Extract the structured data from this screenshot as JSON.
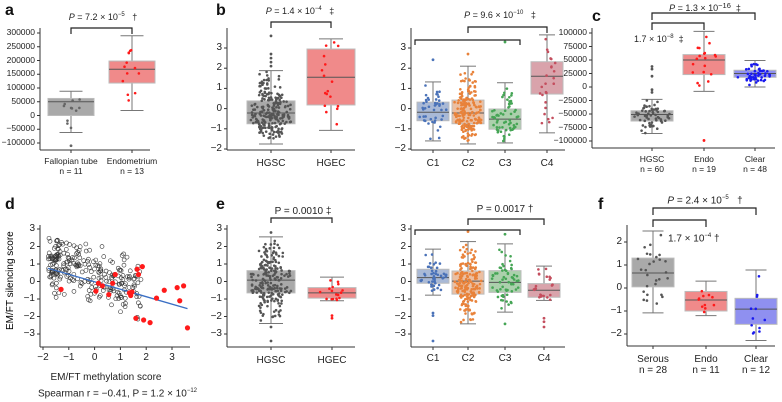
{
  "panels": {
    "a": {
      "letter": "a",
      "p": "P",
      "ptext": " = 7.2 × 10",
      "exp": "−5",
      "mark": "†",
      "labels": [
        "Fallopian tube",
        "Endometrium"
      ],
      "n": [
        "n = 11",
        "n = 13"
      ]
    },
    "b": {
      "letter": "b",
      "p": "P",
      "ptext": " = 1.4 × 10",
      "exp": "−4",
      "mark": "‡",
      "labels": [
        "HGSC",
        "HGEC"
      ]
    },
    "b2": {
      "p": "P",
      "ptext": " = 9.6 × 10",
      "exp": "−10",
      "mark": "‡",
      "labels": [
        "C1",
        "C2",
        "C3",
        "C4"
      ]
    },
    "c": {
      "letter": "c",
      "p": "P",
      "ptext": " = 1.3 × 10",
      "exp": "−16",
      "mark": "‡",
      "inner": "1.7 × 10",
      "inner_exp": "−8",
      "inner_mark": "‡",
      "labels": [
        "HGSC",
        "Endo",
        "Clear"
      ],
      "n": [
        "n = 60",
        "n = 19",
        "n = 48"
      ]
    },
    "d": {
      "letter": "d",
      "xlabel": "EM/FT methylation score",
      "ylabel": "EM/FT silencing score",
      "stat": "Spearman r = −0.41, P = 1.2 × 10",
      "stat_exp": "−12"
    },
    "e": {
      "letter": "e",
      "ptext": "P = 0.0010 ‡",
      "labels": [
        "HGSC",
        "HGEC"
      ]
    },
    "e2": {
      "ptext": "P = 0.0017 †",
      "labels": [
        "C1",
        "C2",
        "C3",
        "C4"
      ]
    },
    "f": {
      "letter": "f",
      "p": "P",
      "ptext": " = 2.4 × 10",
      "exp": "−5",
      "mark": "†",
      "inner": "1.7 × 10",
      "inner_exp": "−4",
      "inner_mark": "†",
      "labels": [
        "Serous",
        "Endo",
        "Clear"
      ],
      "n": [
        "n = 28",
        "n = 11",
        "n = 12"
      ]
    }
  },
  "chart_data": [
    {
      "id": "a",
      "type": "box",
      "yticks": [
        -100000,
        -50000,
        0,
        50000,
        100000,
        150000,
        200000,
        250000,
        300000
      ],
      "ylim": [
        -100000,
        300000
      ],
      "boxes": [
        {
          "name": "Fallopian tube",
          "q1": 0,
          "median": 50000,
          "q3": 62000,
          "wlo": -62000,
          "whi": 88000,
          "n": 11,
          "outliers": [
            -110000
          ],
          "box": "#a9a9a9",
          "dot": "#666666"
        },
        {
          "name": "Endometrium",
          "q1": 118000,
          "median": 168000,
          "q3": 198000,
          "wlo": 18000,
          "whi": 290000,
          "n": 13,
          "outliers": [],
          "box": "#f08a8a",
          "dot": "#ff1a1a"
        }
      ]
    },
    {
      "id": "b1",
      "type": "box",
      "yticks": [
        -2,
        -1,
        0,
        1,
        2,
        3
      ],
      "ylim": [
        -2,
        3.6
      ],
      "boxes": [
        {
          "name": "HGSC",
          "q1": -0.75,
          "median": -0.22,
          "q3": 0.38,
          "wlo": -1.75,
          "whi": 1.88,
          "n": 300,
          "outliers": [
            2.1,
            2.3,
            2.5,
            2.7,
            3.6
          ],
          "box": "#a9a9a9",
          "dot": "#555555"
        },
        {
          "name": "HGEC",
          "q1": 0.18,
          "median": 1.55,
          "q3": 2.95,
          "wlo": -1.08,
          "whi": 3.45,
          "n": 17,
          "outliers": [],
          "box": "#f08a8a",
          "dot": "#ff1a1a"
        }
      ]
    },
    {
      "id": "b2",
      "type": "box",
      "yticks": [
        -2,
        -1,
        0,
        1,
        2,
        3
      ],
      "ylim": [
        -2,
        3.6
      ],
      "boxes": [
        {
          "name": "C1",
          "q1": -0.6,
          "median": -0.18,
          "q3": 0.32,
          "wlo": -1.6,
          "whi": 1.32,
          "n": 45,
          "outliers": [
            2.42
          ],
          "box": "#a9b9d6",
          "dot": "#4a72b8"
        },
        {
          "name": "C2",
          "q1": -0.75,
          "median": -0.22,
          "q3": 0.42,
          "wlo": -1.75,
          "whi": 2.1,
          "n": 180,
          "outliers": [
            2.7
          ],
          "box": "#ebbfa2",
          "dot": "#e8823a"
        },
        {
          "name": "C3",
          "q1": -1.02,
          "median": -0.52,
          "q3": -0.02,
          "wlo": -1.7,
          "whi": 1.28,
          "n": 60,
          "outliers": [
            3.3
          ],
          "box": "#abd0ac",
          "dot": "#45a555"
        },
        {
          "name": "C4",
          "q1": 0.72,
          "median": 1.6,
          "q3": 2.32,
          "wlo": -1.2,
          "whi": 3.65,
          "n": 25,
          "outliers": [],
          "box": "#d9a3ab",
          "dot": "#c44e5e"
        }
      ]
    },
    {
      "id": "c",
      "type": "box",
      "yticks": [
        -100000,
        -75000,
        -50000,
        -25000,
        0,
        25000,
        50000,
        75000,
        100000
      ],
      "ylim": [
        -100000,
        100000
      ],
      "boxes": [
        {
          "name": "HGSC",
          "q1": -63000,
          "median": -51000,
          "q3": -44000,
          "wlo": -86000,
          "whi": -23000,
          "n": 60,
          "outliers": [
            38000,
            33000,
            20000,
            -5000,
            -10000
          ],
          "box": "#a9a9a9",
          "dot": "#555555"
        },
        {
          "name": "Endo",
          "q1": 23000,
          "median": 50000,
          "q3": 60000,
          "wlo": -8000,
          "whi": 103000,
          "n": 19,
          "outliers": [
            -99000
          ],
          "box": "#f08a8a",
          "dot": "#ff1a1a"
        },
        {
          "name": "Clear",
          "q1": 18000,
          "median": 25000,
          "q3": 31000,
          "wlo": 0,
          "whi": 49000,
          "n": 48,
          "outliers": [],
          "box": "#8f90f0",
          "dot": "#1a1aee"
        }
      ]
    },
    {
      "id": "d",
      "type": "scatter",
      "xticks": [
        -2,
        -1,
        0,
        1,
        2,
        3
      ],
      "yticks": [
        -3,
        -2,
        -1,
        0,
        1,
        2,
        3
      ],
      "xlim": [
        -2,
        3.8
      ],
      "ylim": [
        -3.4,
        3
      ],
      "fit": {
        "x": [
          -1.8,
          3.6
        ],
        "y": [
          0.75,
          -1.55
        ],
        "color": "#3a6fc4"
      },
      "gray_n": 260,
      "red_points": [
        [
          -1.3,
          -0.45
        ],
        [
          0.05,
          -0.55
        ],
        [
          0.15,
          -0.1
        ],
        [
          0.3,
          -0.25
        ],
        [
          0.55,
          -0.75
        ],
        [
          0.7,
          -0.1
        ],
        [
          0.8,
          0.4
        ],
        [
          1.35,
          -0.65
        ],
        [
          1.4,
          -0.8
        ],
        [
          1.45,
          -0.6
        ],
        [
          1.6,
          -2.1
        ],
        [
          1.65,
          0.7
        ],
        [
          1.7,
          0.4
        ],
        [
          1.85,
          0.85
        ],
        [
          1.9,
          -2.2
        ],
        [
          2.15,
          -2.35
        ],
        [
          2.4,
          -0.95
        ],
        [
          2.7,
          -0.5
        ],
        [
          3.2,
          -0.35
        ],
        [
          3.3,
          -1.1
        ],
        [
          3.45,
          -0.25
        ],
        [
          3.6,
          -2.65
        ]
      ]
    },
    {
      "id": "e1",
      "type": "box",
      "yticks": [
        -3,
        -2,
        -1,
        0,
        1,
        2,
        3
      ],
      "ylim": [
        -3.4,
        3
      ],
      "boxes": [
        {
          "name": "HGSC",
          "q1": -0.65,
          "median": 0.08,
          "q3": 0.62,
          "wlo": -2.4,
          "whi": 2.55,
          "n": 300,
          "outliers": [
            2.8,
            -2.6,
            -3.4
          ],
          "box": "#a9a9a9",
          "dot": "#555555"
        },
        {
          "name": "HGEC",
          "q1": -0.95,
          "median": -0.65,
          "q3": -0.35,
          "wlo": -1.1,
          "whi": 0.25,
          "n": 17,
          "outliers": [
            -1.95,
            -2.1
          ],
          "box": "#f08a8a",
          "dot": "#ff1a1a"
        }
      ]
    },
    {
      "id": "e2",
      "type": "box",
      "yticks": [
        -3,
        -2,
        -1,
        0,
        1,
        2,
        3
      ],
      "ylim": [
        -3.4,
        3
      ],
      "boxes": [
        {
          "name": "C1",
          "q1": -0.1,
          "median": 0.22,
          "q3": 0.7,
          "wlo": -0.78,
          "whi": 1.85,
          "n": 45,
          "outliers": [
            -1.8,
            -1.95,
            -3.4
          ],
          "box": "#a9b9d6",
          "dot": "#4a72b8"
        },
        {
          "name": "C2",
          "q1": -0.72,
          "median": 0.02,
          "q3": 0.6,
          "wlo": -2.42,
          "whi": 2.28,
          "n": 180,
          "outliers": [
            2.85
          ],
          "box": "#ebbfa2",
          "dot": "#e8823a"
        },
        {
          "name": "C3",
          "q1": -0.62,
          "median": -0.05,
          "q3": 0.62,
          "wlo": -1.75,
          "whi": 2.15,
          "n": 60,
          "outliers": [
            2.7,
            -2.42
          ],
          "box": "#abd0ac",
          "dot": "#45a555"
        },
        {
          "name": "C4",
          "q1": -0.9,
          "median": -0.5,
          "q3": -0.12,
          "wlo": -1.08,
          "whi": 0.88,
          "n": 25,
          "outliers": [
            -2.1,
            -2.3,
            -2.6
          ],
          "box": "#d9a3ab",
          "dot": "#c44e5e"
        }
      ]
    },
    {
      "id": "f",
      "type": "box",
      "yticks": [
        -2,
        -1,
        0,
        1,
        2
      ],
      "ylim": [
        -2.5,
        2.6
      ],
      "boxes": [
        {
          "name": "Serous",
          "q1": 0.05,
          "median": 0.65,
          "q3": 1.3,
          "wlo": -1.08,
          "whi": 2.48,
          "n": 28,
          "outliers": [],
          "box": "#a9a9a9",
          "dot": "#555555"
        },
        {
          "name": "Endo",
          "q1": -1.0,
          "median": -0.52,
          "q3": -0.15,
          "wlo": -1.2,
          "whi": 0.3,
          "n": 11,
          "outliers": [],
          "box": "#f08a8a",
          "dot": "#ff1a1a"
        },
        {
          "name": "Clear",
          "q1": -1.58,
          "median": -0.92,
          "q3": -0.45,
          "wlo": -2.28,
          "whi": 0.78,
          "n": 12,
          "outliers": [],
          "box": "#8f90f0",
          "dot": "#1a1aee"
        }
      ]
    }
  ]
}
